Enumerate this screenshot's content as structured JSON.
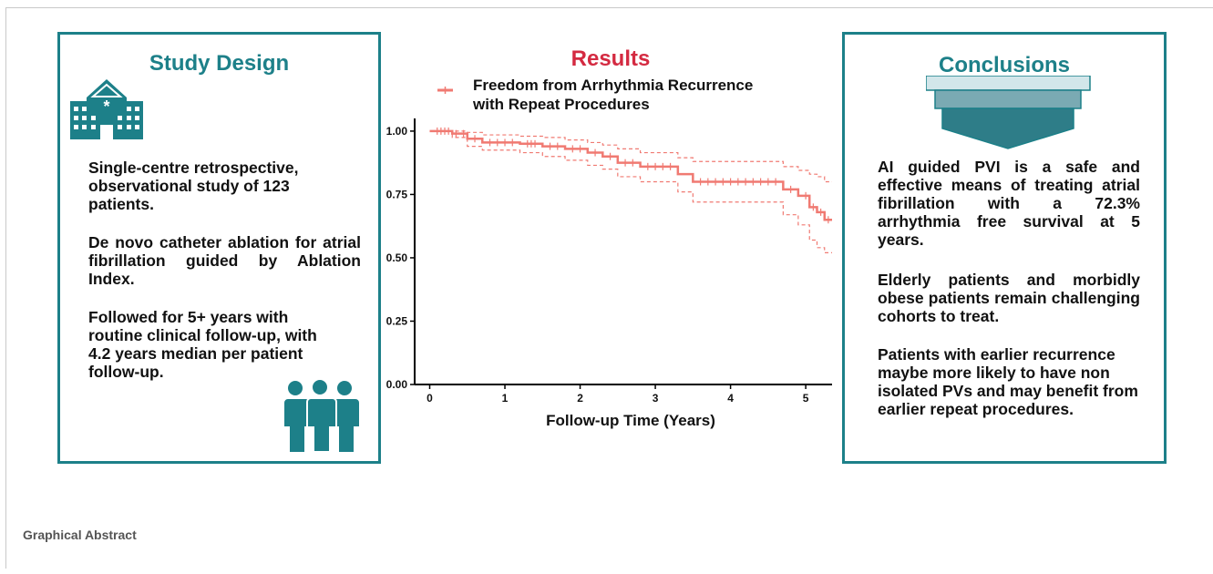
{
  "study_design": {
    "title": "Study Design",
    "paragraphs": [
      "Single-centre retrospective, observational study of 123 patients.",
      "De novo catheter ablation for atrial fibrillation guided by Ablation Index.",
      "Followed for 5+ years with routine clinical follow-up, with 4.2 years median per patient follow-up."
    ],
    "icons": [
      "hospital-icon",
      "people-group-icon"
    ],
    "accent": "#1d8089"
  },
  "results": {
    "title": "Results",
    "color": "#d42a41"
  },
  "conclusions": {
    "title": "Conclusions",
    "paragraphs": [
      "AI guided PVI is a safe and effective means of treating atrial fibrillation with a 72.3% arrhythmia free survival at 5 years.",
      "Elderly patients and morbidly obese patients remain challenging cohorts to treat.",
      "Patients with earlier recurrence maybe more likely to have non isolated PVs and may benefit from earlier repeat procedures."
    ],
    "icons": [
      "funnel-icon"
    ]
  },
  "footer": "Graphical Abstract",
  "chart_data": {
    "type": "line",
    "title": "",
    "xlabel": "Follow-up Time (Years)",
    "ylabel": "",
    "xlim": [
      -0.2,
      5.35
    ],
    "ylim": [
      0,
      1.05
    ],
    "xticks": [
      "0",
      "1",
      "2",
      "3",
      "4",
      "5"
    ],
    "yticks": [
      "0.00",
      "0.25",
      "0.50",
      "0.75",
      "1.00"
    ],
    "grid": false,
    "legend": "top",
    "series": [
      {
        "name": "Freedom from Arrhythmia Recurrence\nwith Repeat Procedures",
        "color": "#f07a72",
        "step": true,
        "x": [
          0,
          0.3,
          0.5,
          0.7,
          1.2,
          1.5,
          1.8,
          2.1,
          2.3,
          2.5,
          2.8,
          3.3,
          3.5,
          4.7,
          4.9,
          5.05,
          5.15,
          5.25
        ],
        "y": [
          1.0,
          0.99,
          0.97,
          0.955,
          0.95,
          0.94,
          0.93,
          0.915,
          0.9,
          0.875,
          0.86,
          0.83,
          0.8,
          0.77,
          0.745,
          0.7,
          0.68,
          0.65
        ],
        "ci_upper": [
          1.0,
          1.0,
          0.995,
          0.985,
          0.98,
          0.975,
          0.965,
          0.955,
          0.945,
          0.93,
          0.915,
          0.895,
          0.88,
          0.86,
          0.845,
          0.83,
          0.82,
          0.8
        ],
        "ci_lower": [
          1.0,
          0.975,
          0.94,
          0.925,
          0.915,
          0.9,
          0.885,
          0.865,
          0.85,
          0.82,
          0.8,
          0.76,
          0.72,
          0.67,
          0.63,
          0.57,
          0.54,
          0.52
        ],
        "censor_x": [
          0.1,
          0.15,
          0.2,
          0.25,
          0.35,
          0.45,
          0.6,
          0.8,
          0.9,
          1.0,
          1.1,
          1.3,
          1.35,
          1.4,
          1.6,
          1.7,
          1.9,
          2.0,
          2.2,
          2.4,
          2.6,
          2.7,
          2.9,
          3.0,
          3.1,
          3.2,
          3.6,
          3.7,
          3.8,
          3.9,
          4.0,
          4.1,
          4.2,
          4.3,
          4.4,
          4.5,
          4.6,
          4.8,
          5.0,
          5.1,
          5.2,
          5.3
        ]
      }
    ]
  }
}
